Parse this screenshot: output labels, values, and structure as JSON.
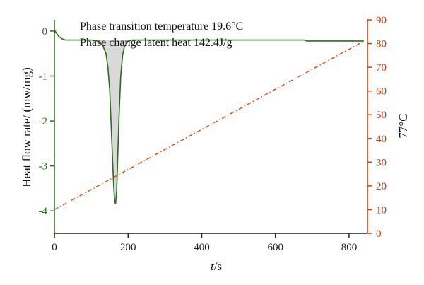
{
  "chart_data": {
    "type": "line",
    "annotations": [
      "Phase transition temperature 19.6°C",
      "Phase change latent heat 142.4J/g"
    ],
    "xlabel_italic": "t",
    "xlabel_rest": "/s",
    "ylabel_left": "Heat flow rate/ (mw/mg)",
    "ylabel_right": "77°C",
    "xlim": [
      0,
      850
    ],
    "ylim_left": [
      -4.5,
      0.25
    ],
    "ylim_right": [
      0,
      90
    ],
    "x_ticks": [
      "0",
      "200",
      "400",
      "600",
      "800"
    ],
    "x_tick_values": [
      0,
      200,
      400,
      600,
      800
    ],
    "left_ticks": [
      "0",
      "-1",
      "-2",
      "-3",
      "-4"
    ],
    "left_tick_values": [
      0,
      -1,
      -2,
      -3,
      -4
    ],
    "right_ticks": [
      "0",
      "10",
      "20",
      "30",
      "40",
      "50",
      "60",
      "70",
      "80",
      "90"
    ],
    "right_tick_values": [
      0,
      10,
      20,
      30,
      40,
      50,
      60,
      70,
      80,
      90
    ],
    "series": [
      {
        "axis": "left",
        "style": "solid",
        "color": "#2e6b1e",
        "fill": "#d9d9d9",
        "x": [
          0,
          2,
          6,
          12,
          20,
          30,
          40,
          60,
          80,
          100,
          110,
          120,
          130,
          140,
          145,
          150,
          155,
          160,
          163,
          166,
          169,
          172,
          175,
          180,
          185,
          190,
          200,
          210,
          220,
          300,
          400,
          500,
          600,
          680,
          685,
          750,
          800,
          840
        ],
        "y": [
          -0.05,
          0.0,
          -0.05,
          -0.12,
          -0.17,
          -0.2,
          -0.2,
          -0.2,
          -0.2,
          -0.2,
          -0.21,
          -0.23,
          -0.3,
          -0.5,
          -0.8,
          -1.3,
          -2.3,
          -3.3,
          -3.75,
          -3.85,
          -3.55,
          -2.8,
          -2.0,
          -1.0,
          -0.55,
          -0.35,
          -0.23,
          -0.2,
          -0.2,
          -0.2,
          -0.2,
          -0.2,
          -0.2,
          -0.2,
          -0.22,
          -0.22,
          -0.22,
          -0.22
        ]
      },
      {
        "axis": "right",
        "style": "dash-dot",
        "color": "#d9480f",
        "x": [
          0,
          840
        ],
        "y": [
          10,
          81
        ]
      }
    ]
  },
  "colors": {
    "left_axis": "#2e6b1e",
    "right_axis": "#c2410c",
    "bottom_axis": "#222222",
    "peak_fill": "#d9d9d9"
  }
}
